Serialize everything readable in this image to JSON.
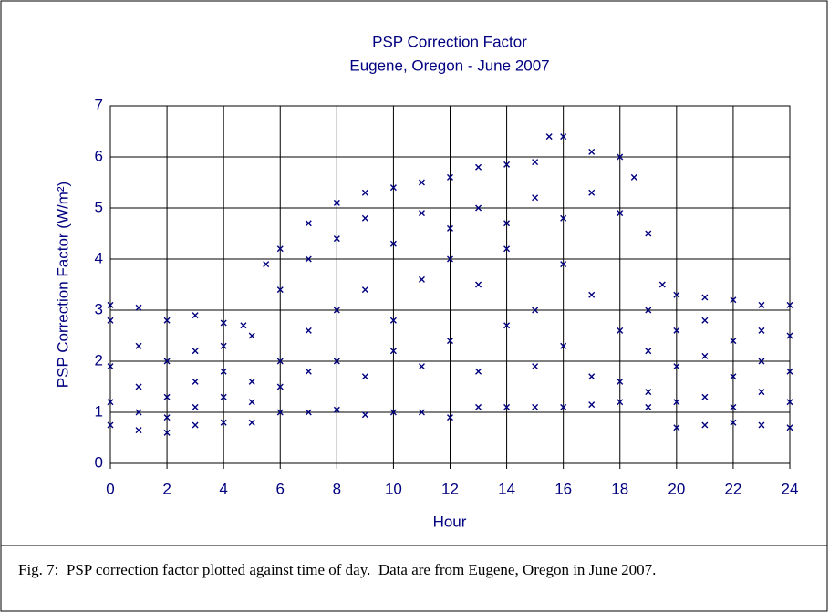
{
  "chart_data": {
    "type": "scatter",
    "title": "PSP Correction Factor",
    "subtitle": "Eugene, Oregon - June 2007",
    "xlabel": "Hour",
    "ylabel": "PSP Correction Factor (W/m²)",
    "caption": "Fig. 7:  PSP correction factor plotted against time of day.  Data are from Eugene, Oregon in June 2007.",
    "color": "#000080",
    "grid": true,
    "xlim": [
      0,
      24
    ],
    "xticks": [
      0,
      2,
      4,
      6,
      8,
      10,
      12,
      14,
      16,
      18,
      20,
      22,
      24
    ],
    "ylim": [
      0,
      7
    ],
    "yticks": [
      0,
      1,
      2,
      3,
      4,
      5,
      6,
      7
    ],
    "x": [
      0,
      1,
      2,
      3,
      4,
      4.7,
      5.5,
      6,
      7,
      8,
      9,
      10,
      11,
      12,
      13,
      14,
      15,
      15.5,
      16,
      17,
      18,
      18.5,
      19,
      19.5,
      20,
      21,
      22,
      23,
      24,
      0,
      1,
      2,
      3,
      4,
      5,
      6,
      7,
      8,
      9,
      10,
      11,
      12,
      13,
      14,
      15,
      16,
      17,
      18,
      19,
      20,
      21,
      22,
      23,
      24,
      0,
      1,
      2,
      3,
      4,
      5,
      6,
      7,
      8,
      9,
      10,
      11,
      12,
      13,
      14,
      15,
      16,
      17,
      18,
      19,
      20,
      21,
      22,
      23,
      24,
      0,
      1,
      2,
      3,
      4,
      5,
      6,
      7,
      8,
      9,
      10,
      11,
      12,
      13,
      14,
      15,
      16,
      17,
      18,
      19,
      20,
      21,
      22,
      23,
      24,
      0,
      1,
      2,
      3,
      4,
      5,
      6,
      7,
      8,
      9,
      10,
      11,
      12,
      13,
      14,
      15,
      16,
      17,
      18,
      19,
      20,
      21,
      22,
      23,
      24
    ],
    "y": [
      3.1,
      3.05,
      2.8,
      2.9,
      2.75,
      2.7,
      3.9,
      4.2,
      4.7,
      5.1,
      5.3,
      5.4,
      5.5,
      5.6,
      5.8,
      5.85,
      5.9,
      6.4,
      6.4,
      6.1,
      6.0,
      5.6,
      4.5,
      3.5,
      3.3,
      3.25,
      3.2,
      3.1,
      3.1,
      0.75,
      0.65,
      0.6,
      0.75,
      0.8,
      0.8,
      1.0,
      1.0,
      1.05,
      0.95,
      1.0,
      1.0,
      0.9,
      1.1,
      1.1,
      1.1,
      1.1,
      1.15,
      1.2,
      1.1,
      0.7,
      0.75,
      0.8,
      0.75,
      0.7,
      1.9,
      1.5,
      1.3,
      2.2,
      1.8,
      1.6,
      2.0,
      2.6,
      3.0,
      3.4,
      2.8,
      3.6,
      4.0,
      3.5,
      4.2,
      3.0,
      3.9,
      3.3,
      2.6,
      2.2,
      1.9,
      2.1,
      1.7,
      2.0,
      1.8,
      2.8,
      2.3,
      2.0,
      1.6,
      2.3,
      2.5,
      3.4,
      4.0,
      4.4,
      4.8,
      4.3,
      4.9,
      4.6,
      5.0,
      4.7,
      5.2,
      4.8,
      5.3,
      4.9,
      3.0,
      2.6,
      2.8,
      2.4,
      2.6,
      2.5,
      1.2,
      1.0,
      0.9,
      1.1,
      1.3,
      1.2,
      1.5,
      1.8,
      2.0,
      1.7,
      2.2,
      1.9,
      2.4,
      1.8,
      2.7,
      1.9,
      2.3,
      1.7,
      1.6,
      1.4,
      1.2,
      1.3,
      1.1,
      1.4,
      1.2
    ]
  }
}
